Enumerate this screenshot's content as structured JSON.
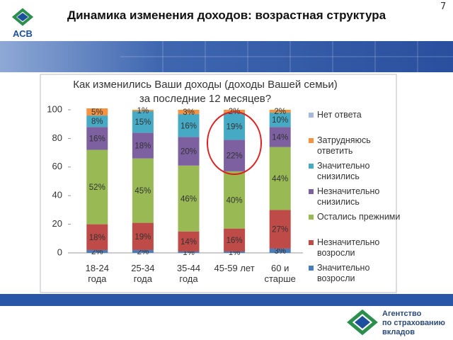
{
  "page_number": "7",
  "title": "Динамика изменения доходов: возрастная структура",
  "logo_text": "АСВ",
  "footer_logo_lines": [
    "Агентство",
    "по страхованию",
    "вкладов"
  ],
  "chart_data": {
    "type": "stacked_bar",
    "title": "Как изменились Ваши доходы (доходы Вашей семьи) за последние 12 месяцев?",
    "categories": [
      "18-24 года",
      "25-34 года",
      "35-44 года",
      "45-59 лет",
      "60 и старше"
    ],
    "ylim": [
      0,
      100
    ],
    "yticks": [
      0,
      20,
      40,
      60,
      80,
      100
    ],
    "legend": "right",
    "series": [
      {
        "name": "Значительно возросли",
        "color": "#4a7ebb",
        "values": [
          2,
          2,
          1,
          1,
          3
        ],
        "value_labels": [
          "2%",
          "2%",
          "1%",
          "1%",
          "3%"
        ]
      },
      {
        "name": "Незначительно возросли",
        "color": "#be4b48",
        "values": [
          18,
          19,
          14,
          16,
          27
        ],
        "value_labels": [
          "18%",
          "19%",
          "14%",
          "16%",
          "27%"
        ]
      },
      {
        "name": "Остались прежними",
        "color": "#98b954",
        "values": [
          52,
          45,
          46,
          40,
          44
        ],
        "value_labels": [
          "52%",
          "45%",
          "46%",
          "40%",
          "44%"
        ]
      },
      {
        "name": "Незначительно снизились",
        "color": "#7d60a0",
        "values": [
          16,
          18,
          20,
          22,
          14
        ],
        "value_labels": [
          "16%",
          "18%",
          "20%",
          "22%",
          "14%"
        ]
      },
      {
        "name": "Значительно снизились",
        "color": "#46aac5",
        "values": [
          8,
          15,
          16,
          19,
          10
        ],
        "value_labels": [
          "8%",
          "15%",
          "16%",
          "19%",
          "10%"
        ]
      },
      {
        "name": "Затрудняюсь ответить",
        "color": "#f69240",
        "values": [
          5,
          1,
          3,
          2,
          2
        ],
        "value_labels": [
          "5%",
          "1%",
          "3%",
          "2%",
          "2%"
        ]
      },
      {
        "name": "Нет ответа",
        "color": "#a5b9dc",
        "values": [
          0,
          0,
          0,
          0,
          0
        ]
      }
    ]
  }
}
